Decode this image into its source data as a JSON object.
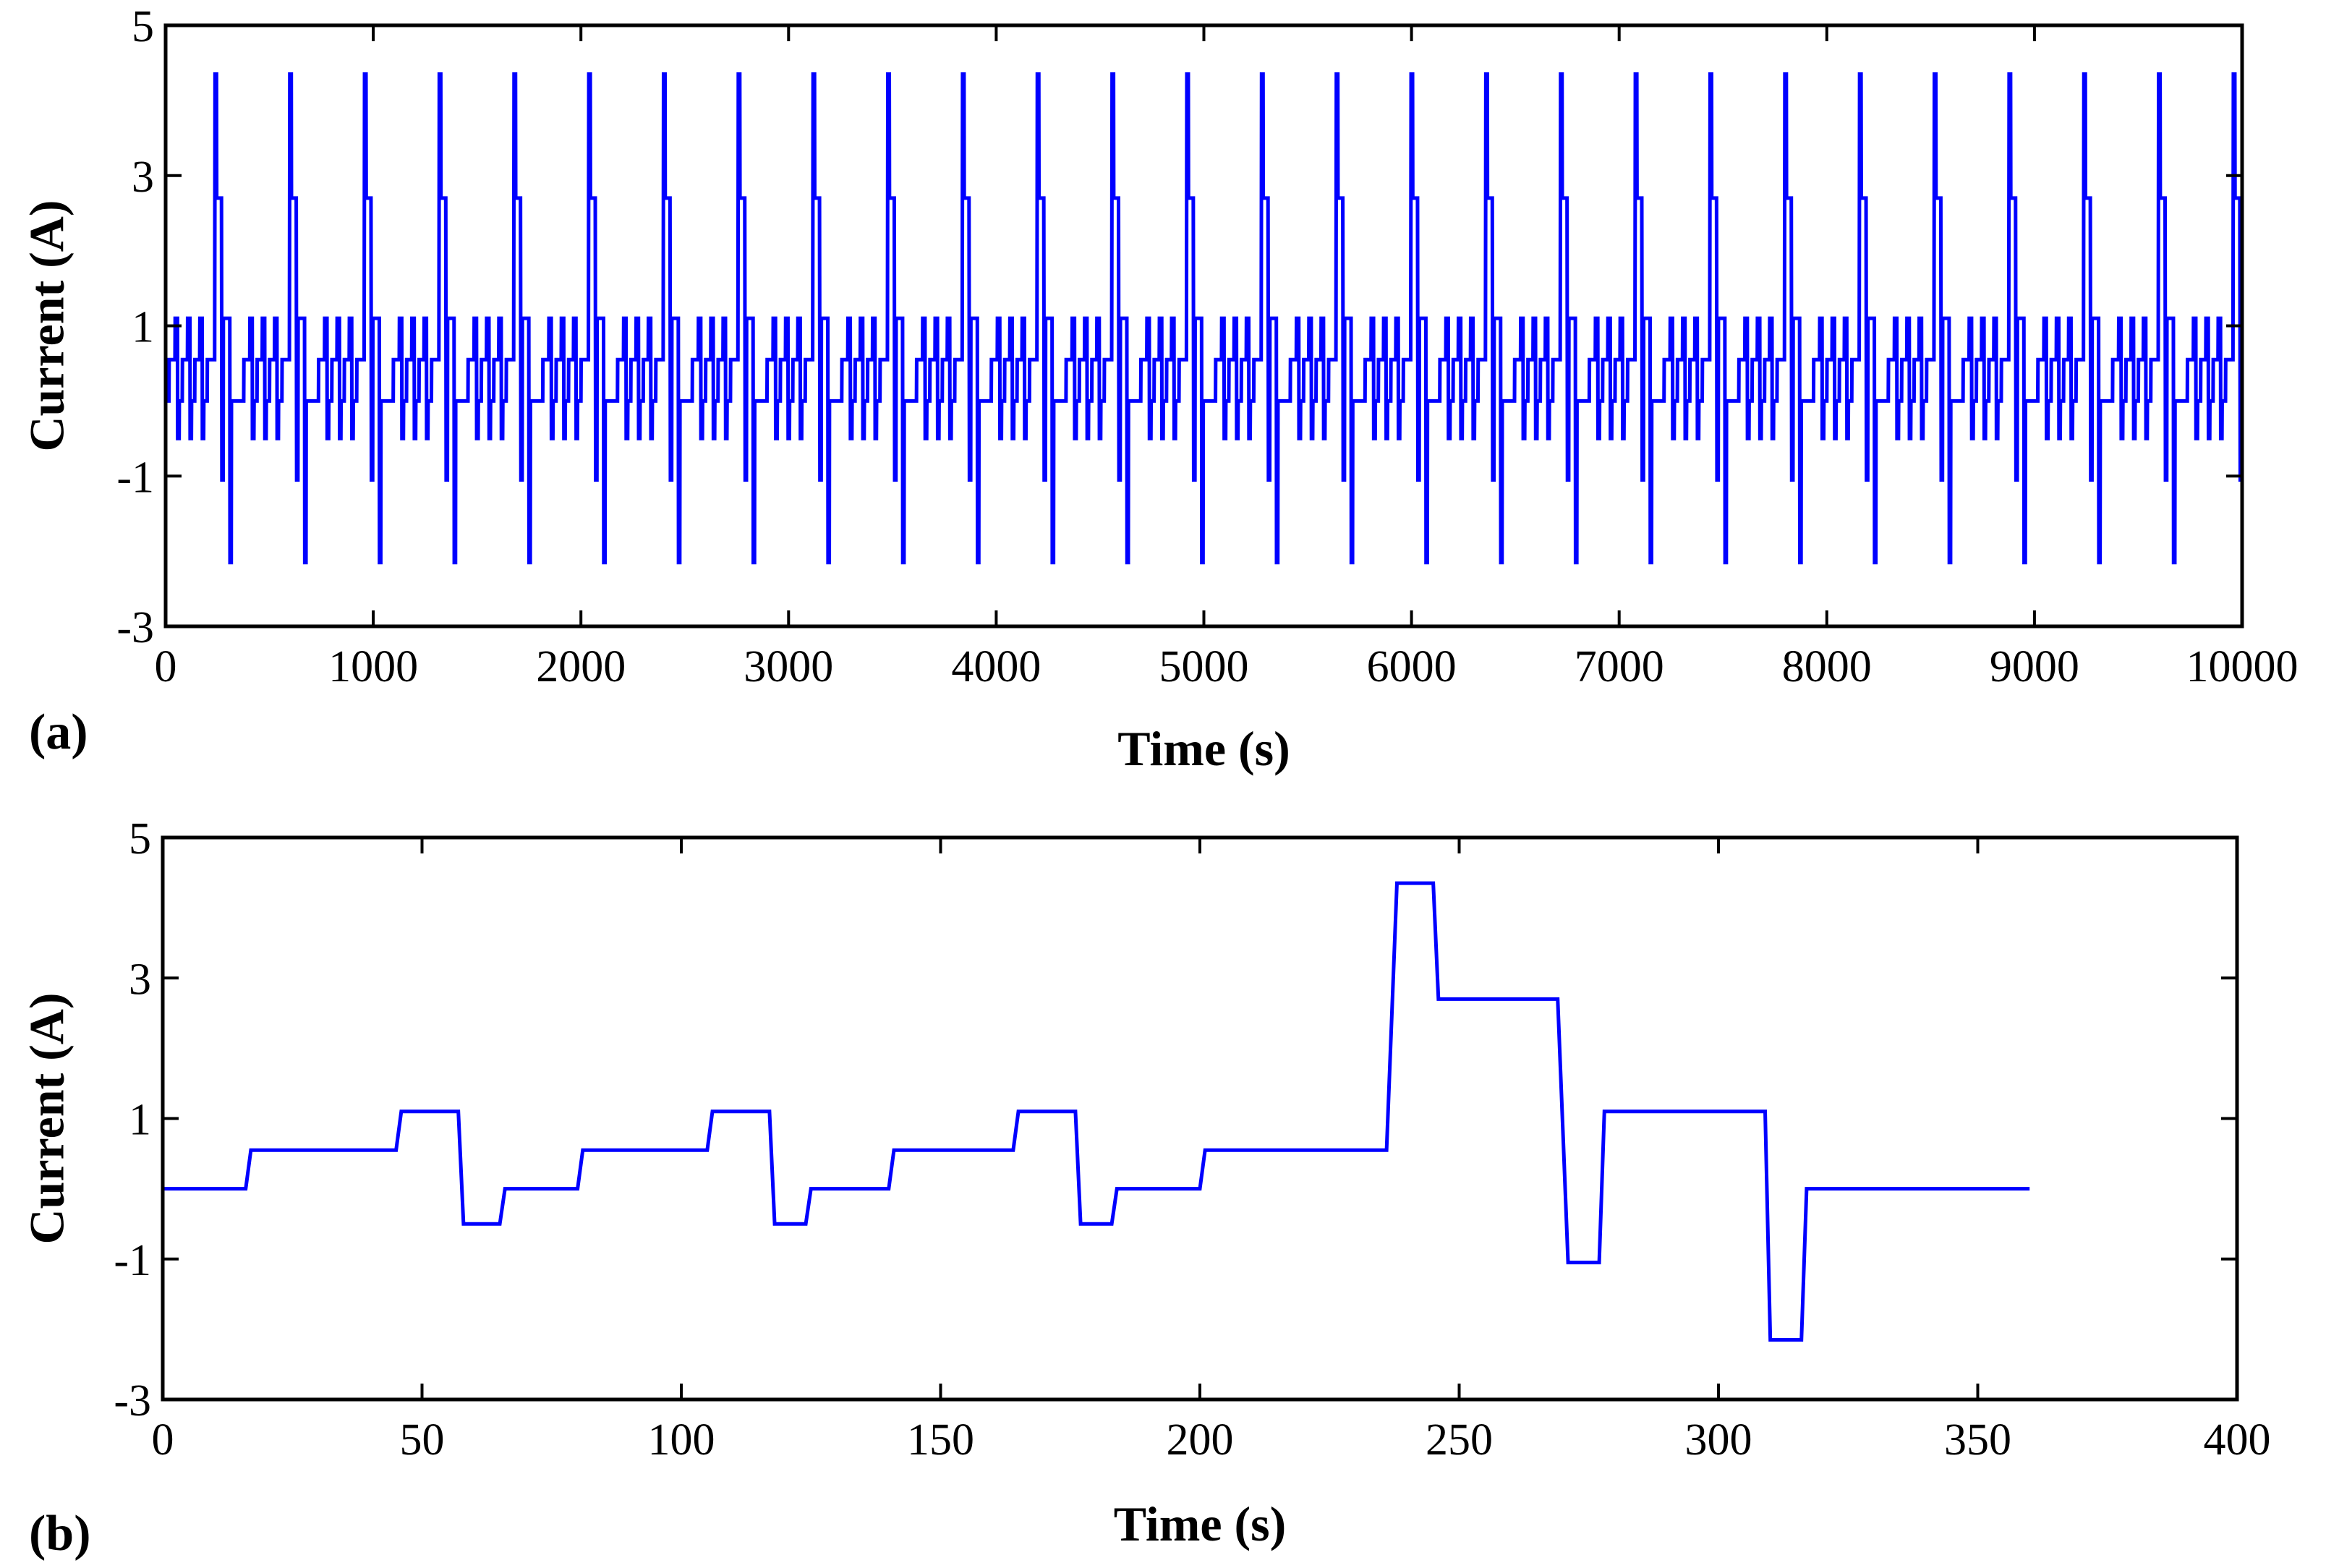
{
  "chart_data": [
    {
      "type": "line",
      "panel_label": "(a)",
      "xlabel": "Time (s)",
      "ylabel": "Current (A)",
      "xlim": [
        0,
        10000
      ],
      "ylim": [
        -3,
        5
      ],
      "xticks": [
        "0",
        "1000",
        "2000",
        "3000",
        "4000",
        "5000",
        "6000",
        "7000",
        "8000",
        "9000",
        "10000"
      ],
      "yticks": [
        "-3",
        "-1",
        "1",
        "3",
        "5"
      ],
      "series_color": "#0000ff",
      "period_s": 360,
      "series": [
        {
          "name": "Current",
          "description": "Repeated 360 s drive-cycle profile (panel b) from 0 to 10000 s",
          "repeat_of": "b",
          "x_range": [
            0,
            10000
          ]
        }
      ]
    },
    {
      "type": "line",
      "panel_label": "(b)",
      "xlabel": "Time (s)",
      "ylabel": "Current (A)",
      "xlim": [
        0,
        400
      ],
      "ylim": [
        -3,
        5
      ],
      "xticks": [
        "0",
        "50",
        "100",
        "150",
        "200",
        "250",
        "300",
        "350",
        "400"
      ],
      "yticks": [
        "-3",
        "-1",
        "1",
        "3",
        "5"
      ],
      "series_color": "#0000ff",
      "series": [
        {
          "name": "Current",
          "x": [
            0,
            16,
            17,
            45,
            46,
            57,
            58,
            65,
            66,
            80,
            81,
            105,
            106,
            117,
            118,
            124,
            125,
            140,
            141,
            164,
            165,
            176,
            177,
            183,
            184,
            200,
            201,
            236,
            238,
            245,
            246,
            269,
            271,
            277,
            278,
            309,
            310,
            316,
            317,
            360
          ],
          "y": [
            0,
            0,
            0.55,
            0.55,
            1.1,
            1.1,
            -0.5,
            -0.5,
            0,
            0,
            0.55,
            0.55,
            1.1,
            1.1,
            -0.5,
            -0.5,
            0,
            0,
            0.55,
            0.55,
            1.1,
            1.1,
            -0.5,
            -0.5,
            0,
            0,
            0.55,
            0.55,
            4.35,
            4.35,
            2.7,
            2.7,
            -1.05,
            -1.05,
            1.1,
            1.1,
            -2.15,
            -2.15,
            0,
            0
          ]
        }
      ]
    }
  ]
}
